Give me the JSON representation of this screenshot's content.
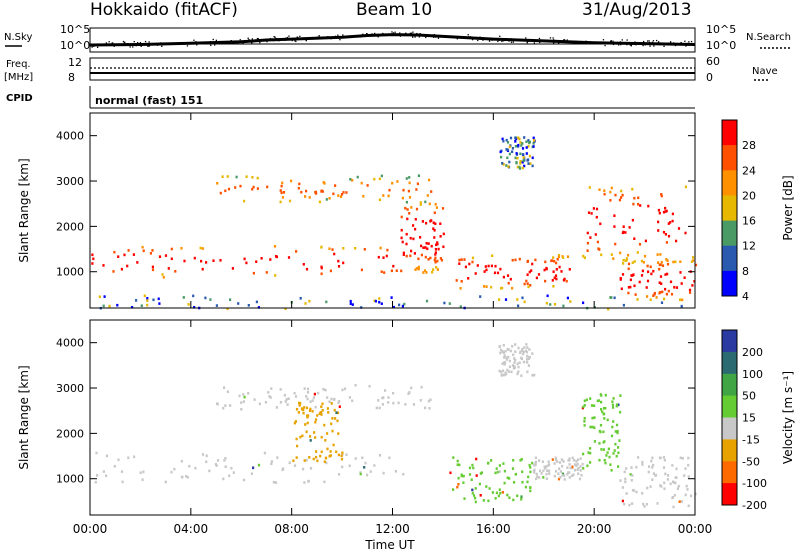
{
  "header": {
    "station": "Hokkaido (fitACF)",
    "beam": "Beam 10",
    "date": "31/Aug/2013"
  },
  "chart_data": [
    {
      "panel": "status",
      "type": "line",
      "left_labels": {
        "nsky": "N.Sky",
        "freq": "Freq.",
        "freq_unit": "[MHz]",
        "cpid": "CPID"
      },
      "right_labels": {
        "nsearch": "N.Search",
        "nave": "Nave"
      },
      "noise_axis_ticks": [
        "10^5",
        "10^0"
      ],
      "freq_axis_ticks": [
        "12",
        "8"
      ],
      "nave_axis_ticks": [
        "60",
        "0"
      ],
      "cpid_text": "normal (fast) 151",
      "x_hours": [
        0,
        2,
        4,
        6,
        7,
        8,
        10,
        11,
        12,
        13,
        14,
        16,
        18,
        20,
        22,
        24
      ],
      "noise_sky_log": [
        0.22,
        0.25,
        0.32,
        0.4,
        0.5,
        0.55,
        0.65,
        0.75,
        0.8,
        0.78,
        0.7,
        0.55,
        0.45,
        0.35,
        0.3,
        0.25
      ],
      "frequency_mhz": [
        10.5,
        10.5,
        10.5,
        10.5,
        10.5,
        10.5,
        10.5,
        10.5,
        10.5,
        10.5,
        10.5,
        10.5,
        10.5,
        10.5,
        10.5,
        10.5
      ],
      "nave": [
        40,
        40,
        40,
        40,
        40,
        40,
        40,
        40,
        40,
        40,
        40,
        40,
        40,
        40,
        40,
        40
      ]
    },
    {
      "panel": "power",
      "type": "heatmap",
      "ylabel": "Slant Range [km]",
      "xlim": [
        0,
        24
      ],
      "ylim": [
        200,
        4500
      ],
      "yticks": [
        "1000",
        "2000",
        "3000",
        "4000"
      ],
      "colorbar_label": "Power [dB]",
      "colorbar_ticks": [
        "28",
        "24",
        "20",
        "16",
        "12",
        "8",
        "4"
      ],
      "colorbar_colors": [
        "#ff0000",
        "#ff5000",
        "#ff9000",
        "#e6b800",
        "#4a9a66",
        "#2a5ab0",
        "#0000ff"
      ],
      "echo_bands": [
        {
          "t0": 0,
          "t1": 12.5,
          "r0": 900,
          "r1": 1600,
          "level": "strong"
        },
        {
          "t0": 12.3,
          "t1": 14.0,
          "r0": 1000,
          "r1": 2600,
          "level": "strong"
        },
        {
          "t0": 5,
          "t1": 13.5,
          "r0": 2550,
          "r1": 3150,
          "level": "medium"
        },
        {
          "t0": 14.5,
          "t1": 19.0,
          "r0": 650,
          "r1": 1400,
          "level": "strong"
        },
        {
          "t0": 19.5,
          "t1": 24,
          "r0": 1300,
          "r1": 2900,
          "level": "strong"
        },
        {
          "t0": 21,
          "t1": 24,
          "r0": 400,
          "r1": 1300,
          "level": "strong"
        },
        {
          "t0": 16.2,
          "t1": 17.6,
          "r0": 3300,
          "r1": 4000,
          "level": "weak"
        },
        {
          "t0": 0,
          "t1": 24,
          "r0": 200,
          "r1": 500,
          "level": "weak"
        }
      ]
    },
    {
      "panel": "velocity",
      "type": "heatmap",
      "ylabel": "Slant Range [km]",
      "xlabel": "Time UT",
      "xlim": [
        0,
        24
      ],
      "ylim": [
        200,
        4500
      ],
      "xticks": [
        "00:00",
        "04:00",
        "08:00",
        "12:00",
        "16:00",
        "20:00",
        "00:00"
      ],
      "yticks": [
        "1000",
        "2000",
        "3000",
        "4000"
      ],
      "colorbar_label": "Velocity [m s⁻¹]",
      "colorbar_ticks": [
        "200",
        "100",
        "50",
        "15",
        "-15",
        "-50",
        "-100",
        "-200"
      ],
      "colorbar_colors": [
        "#2a3aa0",
        "#2a6a70",
        "#3fa545",
        "#66cc33",
        "#c8c8c8",
        "#e8a200",
        "#ff6a00",
        "#ff0000"
      ],
      "echo_bands": [
        {
          "t0": 0,
          "t1": 12.5,
          "r0": 900,
          "r1": 1600,
          "v": "gray"
        },
        {
          "t0": 5,
          "t1": 13.5,
          "r0": 2550,
          "r1": 3100,
          "v": "gray"
        },
        {
          "t0": 8,
          "t1": 10,
          "r0": 1400,
          "r1": 2700,
          "v": "orange"
        },
        {
          "t0": 14.2,
          "t1": 17.5,
          "r0": 500,
          "r1": 1500,
          "v": "green"
        },
        {
          "t0": 17.5,
          "t1": 19.5,
          "r0": 1000,
          "r1": 1500,
          "v": "gray"
        },
        {
          "t0": 19.5,
          "t1": 21.0,
          "r0": 1200,
          "r1": 2900,
          "v": "green"
        },
        {
          "t0": 21,
          "t1": 24,
          "r0": 400,
          "r1": 1500,
          "v": "gray"
        },
        {
          "t0": 16.2,
          "t1": 17.6,
          "r0": 3300,
          "r1": 4000,
          "v": "gray"
        }
      ]
    }
  ]
}
